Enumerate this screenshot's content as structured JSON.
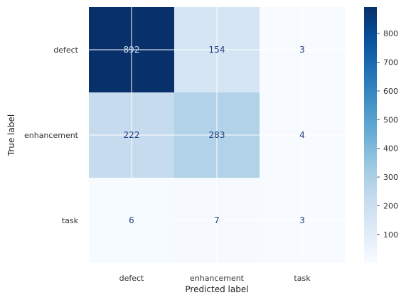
{
  "chart_data": {
    "type": "heatmap",
    "title": "",
    "xlabel": "Predicted label",
    "ylabel": "True label",
    "x_categories": [
      "defect",
      "enhancement",
      "task"
    ],
    "y_categories": [
      "defect",
      "enhancement",
      "task"
    ],
    "matrix": [
      [
        892,
        154,
        3
      ],
      [
        222,
        283,
        4
      ],
      [
        6,
        7,
        3
      ]
    ],
    "cell_labels": [
      [
        "892",
        "154",
        "3"
      ],
      [
        "222",
        "283",
        "4"
      ],
      [
        "6",
        "7",
        "3"
      ]
    ],
    "colormap": "Blues",
    "colorbar": {
      "range": [
        3,
        892
      ],
      "ticks": [
        100,
        200,
        300,
        400,
        500,
        600,
        700,
        800
      ]
    },
    "grid": true
  }
}
